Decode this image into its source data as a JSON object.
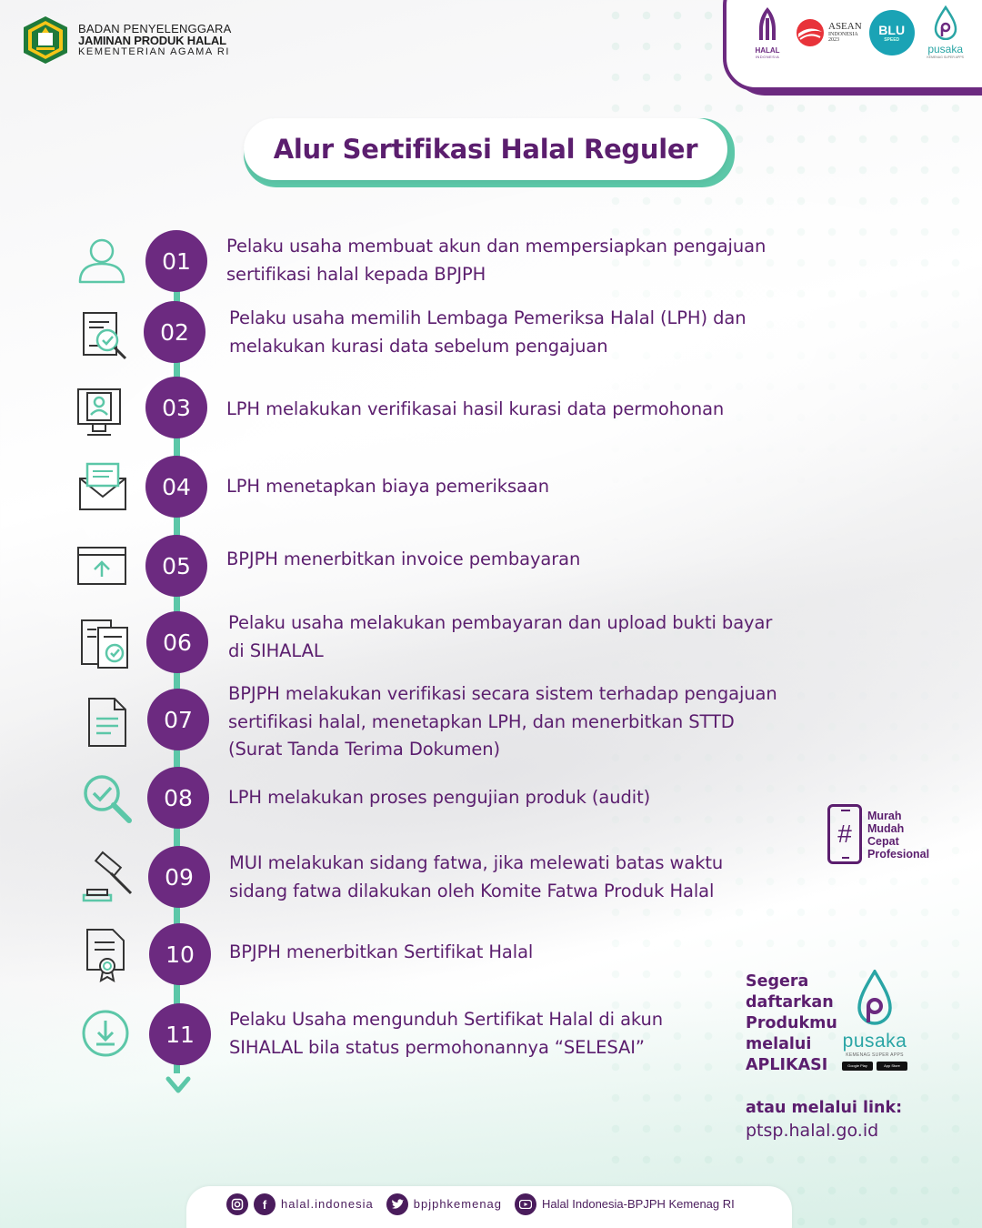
{
  "brand": {
    "line1": "BADAN PENYELENGGARA",
    "line2": "JAMINAN PRODUK HALAL",
    "line3": "KEMENTERIAN AGAMA RI"
  },
  "logos": {
    "halal_caption": "HALAL",
    "halal_sub": "INDONESIA",
    "asean_title": "ASEAN",
    "asean_sub": "INDONESIA",
    "asean_year": "2023",
    "blu": "BLU",
    "blu_sub": "SPEED",
    "pusaka": "pusaka",
    "pusaka_sub": "KEMENAG SUPER APPS"
  },
  "title": "Alur Sertifikasi Halal Reguler",
  "steps": [
    {
      "num": "01",
      "icon": "user-icon",
      "text": "Pelaku usaha membuat akun dan mempersiapkan pengajuan sertifikasi halal kepada BPJPH"
    },
    {
      "num": "02",
      "icon": "document-search-icon",
      "text": "Pelaku usaha memilih Lembaga Pemeriksa Halal (LPH) dan melakukan kurasi data sebelum pengajuan"
    },
    {
      "num": "03",
      "icon": "profile-verification-icon",
      "text": "LPH melakukan verifikasai hasil kurasi data permohonan"
    },
    {
      "num": "04",
      "icon": "invoice-envelope-icon",
      "text": "LPH menetapkan biaya pemeriksaan"
    },
    {
      "num": "05",
      "icon": "upload-window-icon",
      "text": "BPJPH menerbitkan invoice pembayaran"
    },
    {
      "num": "06",
      "icon": "document-check-icon",
      "text": "Pelaku usaha melakukan pembayaran dan upload bukti bayar di SIHALAL"
    },
    {
      "num": "07",
      "icon": "document-icon",
      "text": "BPJPH melakukan verifikasi secara sistem terhadap pengajuan sertifikasi halal, menetapkan LPH, dan menerbitkan STTD (Surat Tanda Terima Dokumen)"
    },
    {
      "num": "08",
      "icon": "magnifier-check-icon",
      "text": "LPH melakukan proses pengujian produk (audit)"
    },
    {
      "num": "09",
      "icon": "gavel-icon",
      "text": "MUI melakukan sidang fatwa, jika melewati batas waktu sidang fatwa dilakukan oleh Komite Fatwa Produk Halal"
    },
    {
      "num": "10",
      "icon": "certificate-icon",
      "text": "BPJPH menerbitkan Sertifikat Halal"
    },
    {
      "num": "11",
      "icon": "download-icon",
      "text": "Pelaku Usaha mengunduh Sertifikat Halal di akun SIHALAL bila status permohonannya “SELESAI”"
    }
  ],
  "tags": [
    "Murah",
    "Mudah",
    "Cepat",
    "Profesional"
  ],
  "cta": {
    "lines": [
      "Segera",
      "daftarkan",
      "Produkmu",
      "melalui",
      "APLIKASI"
    ],
    "app_name": "pusaka",
    "app_sub": "KEMENAG SUPER APPS",
    "store1": "Google Play",
    "store2": "App Store",
    "link_label": "atau melalui link:",
    "link_url": "ptsp.halal.go.id"
  },
  "footer": {
    "handle1": "halal.indonesia",
    "handle2": "bpjphkemenag",
    "handle3": "Halal Indonesia-BPJPH Kemenag RI"
  },
  "colors": {
    "primary": "#6c2a80",
    "accent": "#5cc7a8",
    "text": "#5b1e6e"
  }
}
